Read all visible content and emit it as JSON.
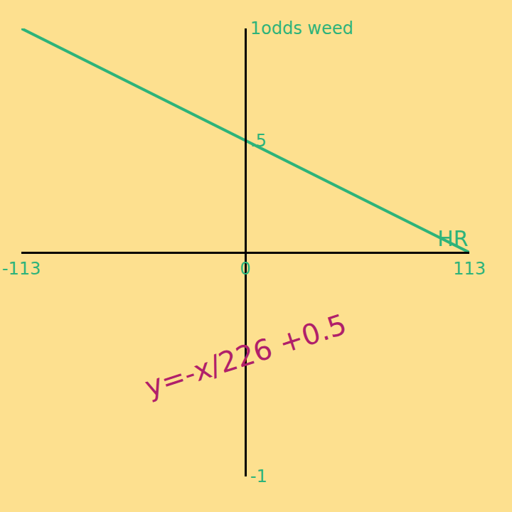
{
  "chart_data": {
    "type": "line",
    "ylabel": "odds weed",
    "x": [
      -113,
      0,
      113
    ],
    "values": [
      1,
      0.5,
      0
    ],
    "color": "#2db37a",
    "xlim": [
      -113,
      113
    ],
    "ylim": [
      -1,
      1
    ],
    "xticks": [
      -113,
      0,
      113
    ],
    "yticks": [
      {
        "value": -1,
        "label": "-1"
      },
      {
        "value": 0.5,
        "label": ".5"
      },
      {
        "value": 1,
        "label": "1"
      }
    ],
    "annotations": [
      {
        "text": "HR",
        "x": 113,
        "y": 0,
        "color": "#2db37a"
      },
      {
        "text": "y=-x/226 +0.5",
        "color": "#b0206a"
      }
    ],
    "grid": false
  }
}
